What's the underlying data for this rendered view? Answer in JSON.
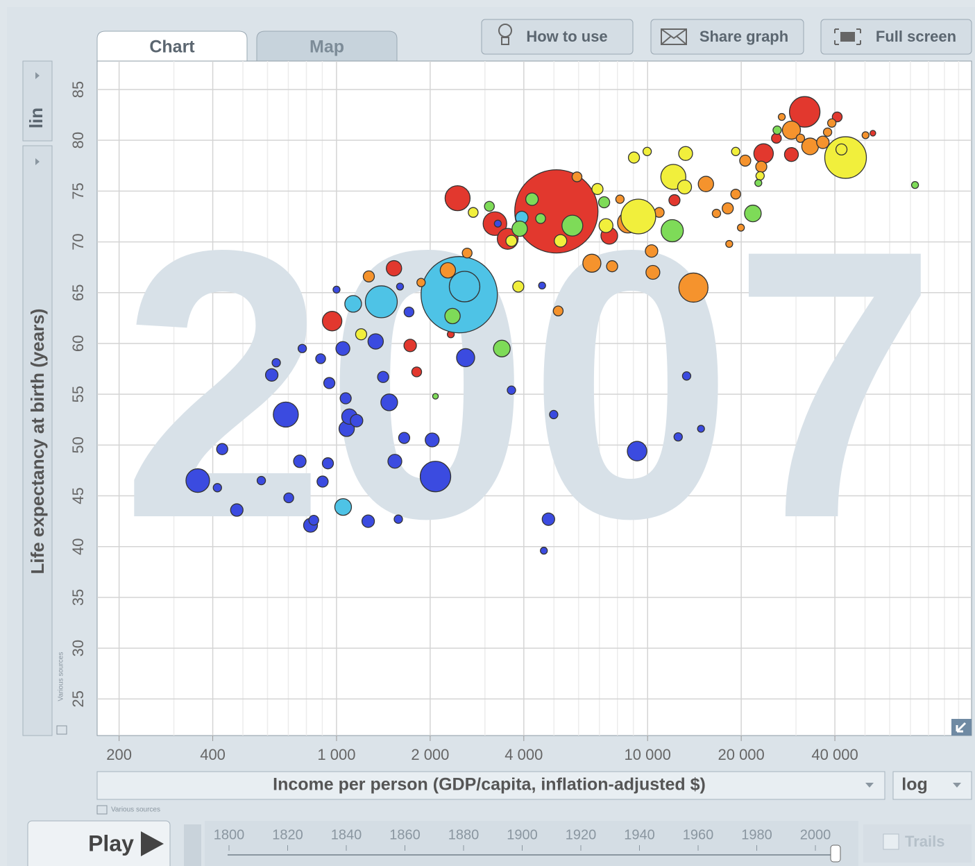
{
  "chart_data": {
    "type": "bubble",
    "watermark": "2007",
    "x_label": "Income per person (GDP/capita, inflation-adjusted $)",
    "y_label": "Life expectancy at birth (years)",
    "xscale": "log",
    "xlim": [
      170,
      110000
    ],
    "ylim": [
      21.4,
      87.8
    ],
    "xticks": [
      200,
      400,
      {
        "value": 1000,
        "label": "1 000"
      },
      {
        "value": 2000,
        "label": "2 000"
      },
      {
        "value": 4000,
        "label": "4 000"
      },
      {
        "value": 10000,
        "label": "10 000"
      },
      {
        "value": 20000,
        "label": "20 000"
      },
      {
        "value": 40000,
        "label": "40 000"
      }
    ],
    "xgrid": [
      300,
      500,
      600,
      700,
      800,
      900,
      3000,
      5000,
      6000,
      7000,
      8000,
      9000,
      30000,
      50000,
      60000,
      70000,
      80000,
      90000,
      100000
    ],
    "yticks": [
      25,
      30,
      35,
      40,
      45,
      50,
      55,
      60,
      65,
      70,
      75,
      80,
      85
    ],
    "grid": true,
    "series": [
      {
        "color": "#e2382e",
        "x": [
          5090,
          2450,
          3230,
          3550,
          968,
          1530,
          1725,
          1810,
          2030,
          2330,
          7530,
          12200,
          23600,
          29000,
          32000,
          40700,
          53000,
          25950
        ],
        "values": [
          73,
          74.3,
          71.8,
          70.3,
          62.2,
          67.4,
          59.8,
          57.2,
          64.5,
          60.9,
          70.6,
          74.1,
          78.7,
          78.6,
          82.8,
          82.3,
          80.7,
          80.2
        ],
        "sizes": [
          1296,
          117,
          104,
          81,
          71,
          44,
          29,
          18,
          13,
          9,
          52,
          23,
          71,
          36,
          174,
          18,
          6,
          18
        ]
      },
      {
        "color": "#4ec3e6",
        "x": [
          2480,
          2580,
          1393,
          1131,
          1050,
          3940
        ],
        "values": [
          64.8,
          65.6,
          64.1,
          63.9,
          43.9,
          72.4
        ],
        "sizes": [
          1089,
          174,
          190,
          52,
          52,
          29
        ]
      },
      {
        "color": "#3b4be0",
        "x": [
          358,
          414,
          429,
          478,
          573,
          619,
          640,
          687,
          702,
          762,
          776,
          825,
          845,
          889,
          902,
          938,
          948,
          1000,
          1048,
          1070,
          1078,
          1100,
          1160,
          1264,
          1336,
          1412,
          1477,
          1540,
          1580,
          1600,
          1650,
          1710,
          2030,
          2080,
          2600,
          3650,
          4800,
          4640,
          4990,
          9250,
          12540,
          13350,
          14850,
          3300,
          4580
        ],
        "values": [
          46.5,
          45.8,
          49.6,
          43.6,
          46.5,
          56.9,
          58.1,
          53,
          44.8,
          48.4,
          59.5,
          42.1,
          42.6,
          58.5,
          46.4,
          48.2,
          56.1,
          65.3,
          59.5,
          54.6,
          51.6,
          52.8,
          52.4,
          42.5,
          60.2,
          56.7,
          54.2,
          48.4,
          42.7,
          65.6,
          50.7,
          63.1,
          50.5,
          46.9,
          58.6,
          55.4,
          42.7,
          39.6,
          53,
          49.4,
          50.8,
          56.8,
          51.6,
          71.8,
          65.7
        ],
        "sizes": [
          104,
          13,
          23,
          29,
          13,
          29,
          13,
          117,
          18,
          29,
          13,
          36,
          18,
          18,
          23,
          23,
          23,
          9,
          36,
          23,
          44,
          44,
          29,
          29,
          44,
          23,
          52,
          36,
          13,
          9,
          23,
          18,
          36,
          174,
          61,
          13,
          29,
          9,
          13,
          71,
          13,
          13,
          9,
          9,
          9
        ]
      },
      {
        "color": "#f5932d",
        "x": [
          14040,
          6620,
          7690,
          10300,
          10400,
          2280,
          2630,
          1270,
          1870,
          5160,
          8650,
          15400,
          18100,
          16650,
          19200,
          19950,
          18300,
          29000,
          33300,
          36600,
          37900,
          23200,
          20600,
          31000,
          39100,
          50200,
          27000,
          10900,
          5930,
          8150
        ],
        "values": [
          65.5,
          67.9,
          67.6,
          69.1,
          67,
          67.2,
          68.9,
          66.6,
          66,
          63.2,
          71.9,
          75.7,
          73.3,
          72.8,
          74.7,
          71.4,
          69.8,
          81,
          79.4,
          79.8,
          80.8,
          77.4,
          78,
          80.2,
          81.7,
          80.5,
          82.3,
          72.9,
          76.4,
          74.2
        ],
        "sizes": [
          159,
          61,
          23,
          29,
          36,
          44,
          18,
          23,
          13,
          18,
          81,
          44,
          23,
          13,
          18,
          9,
          9,
          61,
          52,
          29,
          13,
          23,
          23,
          13,
          13,
          9,
          9,
          18,
          18,
          13
        ]
      },
      {
        "color": "#f1ef3c",
        "x": [
          43300,
          12100,
          9340,
          6900,
          9040,
          9970,
          13250,
          7350,
          3650,
          5250,
          2750,
          19200,
          42000,
          23000,
          13150,
          3840,
          1200
        ],
        "values": [
          78.3,
          76.4,
          72.5,
          75.2,
          78.3,
          78.9,
          78.7,
          71.6,
          70.1,
          70.1,
          72.9,
          78.9,
          79.1,
          76.5,
          75.4,
          65.6,
          60.9
        ],
        "sizes": [
          324,
          117,
          225,
          23,
          23,
          13,
          36,
          36,
          23,
          29,
          18,
          13,
          23,
          13,
          36,
          23,
          23
        ]
      },
      {
        "color": "#7edb58",
        "x": [
          3400,
          2360,
          2080,
          4250,
          3880,
          5730,
          12000,
          21800,
          3100,
          4530,
          7250,
          22700,
          26100,
          72400
        ],
        "values": [
          59.5,
          62.7,
          54.8,
          74.2,
          71.3,
          71.6,
          71.1,
          72.8,
          73.5,
          72.3,
          73.9,
          75.8,
          81,
          75.6
        ],
        "sizes": [
          52,
          44,
          6,
          29,
          44,
          81,
          92,
          52,
          18,
          18,
          23,
          9,
          13,
          9
        ]
      }
    ]
  },
  "ui": {
    "tabs": [
      "Chart",
      "Map"
    ],
    "buttons": [
      "How to use",
      "Share graph",
      "Full screen"
    ],
    "y_scale": "lin",
    "x_scale": "log",
    "source_y": "Various sources",
    "source_x": "Various sources",
    "play": "Play",
    "timeline": [
      1800,
      1820,
      1840,
      1860,
      1880,
      1900,
      1920,
      1940,
      1960,
      1980,
      2000
    ],
    "trails": "Trails"
  }
}
